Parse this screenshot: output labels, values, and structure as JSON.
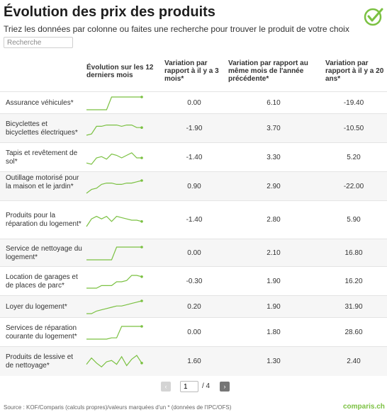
{
  "header": {
    "title": "Évolution des prix des produits",
    "subtitle": "Triez les données par colonne ou faites une recherche pour trouver le produit de votre choix"
  },
  "search": {
    "placeholder": "Recherche"
  },
  "columns": [
    "Évolution sur les 12 derniers mois",
    "Variation par rapport à il y a 3 mois*",
    "Variation par rapport au même mois de l'année précédente*",
    "Variation par rapport à il y a 20 ans*"
  ],
  "rows": [
    {
      "label": "Assurance véhicules*",
      "v3m": "0.00",
      "v1y": "6.10",
      "v20y": "-19.40",
      "trend": [
        0,
        0,
        0,
        0,
        0,
        1,
        1,
        1,
        1,
        1,
        1,
        1
      ]
    },
    {
      "label": "Bicyclettes et bicyclettes électriques*",
      "v3m": "-1.90",
      "v1y": "3.70",
      "v20y": "-10.50",
      "trend": [
        0,
        0.1,
        0.7,
        0.7,
        0.8,
        0.8,
        0.8,
        0.7,
        0.8,
        0.8,
        0.6,
        0.6
      ]
    },
    {
      "label": "Tapis et revêtement de sol*",
      "v3m": "-1.40",
      "v1y": "3.30",
      "v20y": "5.20",
      "trend": [
        0.1,
        0,
        0.5,
        0.6,
        0.4,
        0.8,
        0.7,
        0.5,
        0.7,
        0.9,
        0.5,
        0.5
      ]
    },
    {
      "label": "Outillage motorisé pour la maison et le jardin*",
      "v3m": "0.90",
      "v1y": "2.90",
      "v20y": "-22.00",
      "trend": [
        0,
        0.3,
        0.4,
        0.7,
        0.8,
        0.8,
        0.7,
        0.7,
        0.8,
        0.8,
        0.9,
        1
      ]
    },
    {
      "label": "Produits pour la réparation du logement*",
      "v3m": "-1.40",
      "v1y": "2.80",
      "v20y": "5.90",
      "trend": [
        0,
        0.6,
        0.8,
        0.6,
        0.8,
        0.4,
        0.8,
        0.7,
        0.6,
        0.5,
        0.5,
        0.4
      ]
    },
    {
      "label": "Service de nettoyage du logement*",
      "v3m": "0.00",
      "v1y": "2.10",
      "v20y": "16.80",
      "trend": [
        0,
        0,
        0,
        0,
        0,
        0,
        1,
        1,
        1,
        1,
        1,
        1
      ]
    },
    {
      "label": "Location de garages et de places de parc*",
      "v3m": "-0.30",
      "v1y": "1.90",
      "v20y": "16.20",
      "trend": [
        0,
        0,
        0,
        0.2,
        0.2,
        0.2,
        0.5,
        0.5,
        0.6,
        1,
        1,
        0.9
      ]
    },
    {
      "label": "Loyer du logement*",
      "v3m": "0.20",
      "v1y": "1.90",
      "v20y": "31.90",
      "trend": [
        0,
        0,
        0.2,
        0.3,
        0.4,
        0.5,
        0.6,
        0.6,
        0.7,
        0.8,
        0.9,
        1
      ]
    },
    {
      "label": "Services de réparation courante du logement*",
      "v3m": "0.00",
      "v1y": "1.80",
      "v20y": "28.60",
      "trend": [
        0,
        0,
        0,
        0,
        0,
        0.1,
        0.1,
        1,
        1,
        1,
        1,
        1
      ]
    },
    {
      "label": "Produits de lessive et de nettoyage*",
      "v3m": "1.60",
      "v1y": "1.30",
      "v20y": "2.40",
      "trend": [
        0.3,
        0.8,
        0.4,
        0.1,
        0.5,
        0.6,
        0.3,
        0.9,
        0.2,
        0.7,
        1,
        0.4
      ]
    }
  ],
  "pagination": {
    "current": "1",
    "total": "/ 4",
    "prev": "‹",
    "next": "›"
  },
  "footer": {
    "source": "Source : KOF/Comparis (calculs propres)/valeurs marquées d'un * (données de l'IPC/OFS)",
    "brand": "comparis.ch"
  },
  "colors": {
    "accent": "#7bc142",
    "row_alt": "#f6f6f6"
  },
  "icons": {
    "logo": "checkmark-circle-icon"
  }
}
